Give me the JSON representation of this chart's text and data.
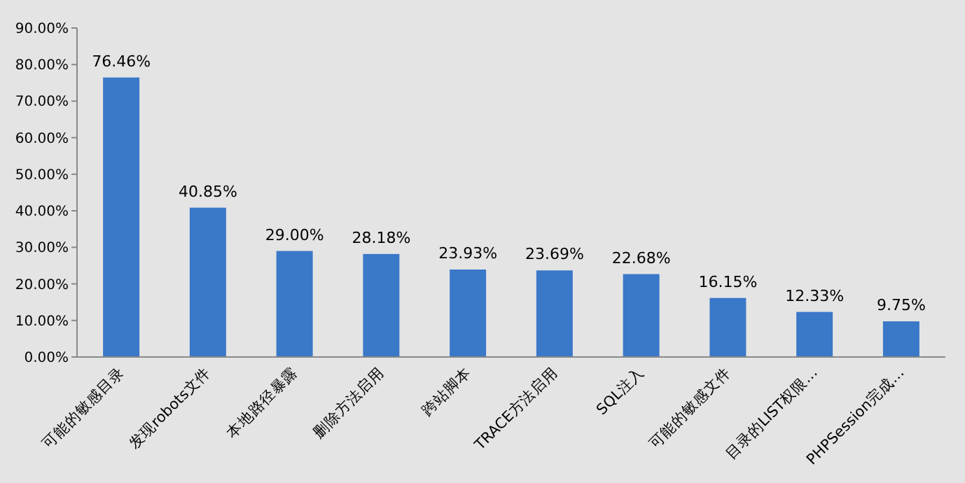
{
  "chart_data": {
    "type": "bar",
    "categories": [
      "可能的敏感目录",
      "发现robots文件",
      "本地路径暴露",
      "删除方法启用",
      "跨站脚本",
      "TRACE方法启用",
      "SQL注入",
      "可能的敏感文件",
      "目录的LIST权限…",
      "PHPSession完成…"
    ],
    "values": [
      76.46,
      40.85,
      29.0,
      28.18,
      23.93,
      23.69,
      22.68,
      16.15,
      12.33,
      9.75
    ],
    "value_labels": [
      "76.46%",
      "40.85%",
      "29.00%",
      "28.18%",
      "23.93%",
      "23.69%",
      "22.68%",
      "16.15%",
      "12.33%",
      "9.75%"
    ],
    "color": "#3a78c8",
    "ylim": [
      0,
      90
    ],
    "yticks": [
      {
        "value": 0,
        "label": "0.00%"
      },
      {
        "value": 10,
        "label": "10.00%"
      },
      {
        "value": 20,
        "label": "20.00%"
      },
      {
        "value": 30,
        "label": "30.00%"
      },
      {
        "value": 40,
        "label": "40.00%"
      },
      {
        "value": 50,
        "label": "50.00%"
      },
      {
        "value": 60,
        "label": "60.00%"
      },
      {
        "value": 70,
        "label": "70.00%"
      },
      {
        "value": 80,
        "label": "80.00%"
      },
      {
        "value": 90,
        "label": "90.00%"
      }
    ],
    "grid": false
  }
}
